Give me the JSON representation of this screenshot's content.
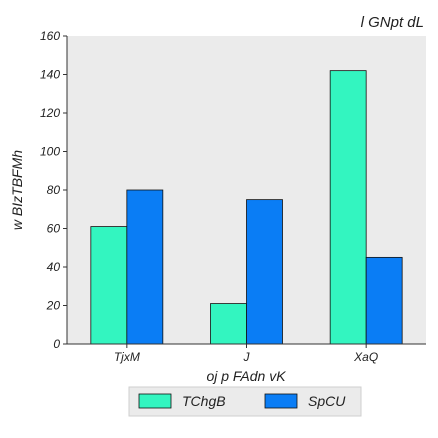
{
  "chart_data": {
    "type": "bar",
    "title": "l GNpt dL",
    "xlabel": "oj p FAdn  vK",
    "ylabel": "w BIzTBFMh",
    "categories": [
      "TjxM",
      "J",
      "XaQ"
    ],
    "series": [
      {
        "name": "TChgB",
        "values": [
          61,
          21,
          142
        ],
        "color": "#33f5c0"
      },
      {
        "name": "SpCU",
        "values": [
          80,
          75,
          45
        ],
        "color": "#0a7df5"
      }
    ],
    "ylim": [
      0,
      160
    ],
    "yticks": [
      0,
      20,
      40,
      60,
      80,
      100,
      120,
      140,
      160
    ],
    "grid": false,
    "legend_position": "bottom-center",
    "background_color": "#ebebeb",
    "bar_edge_color": "#111111"
  }
}
